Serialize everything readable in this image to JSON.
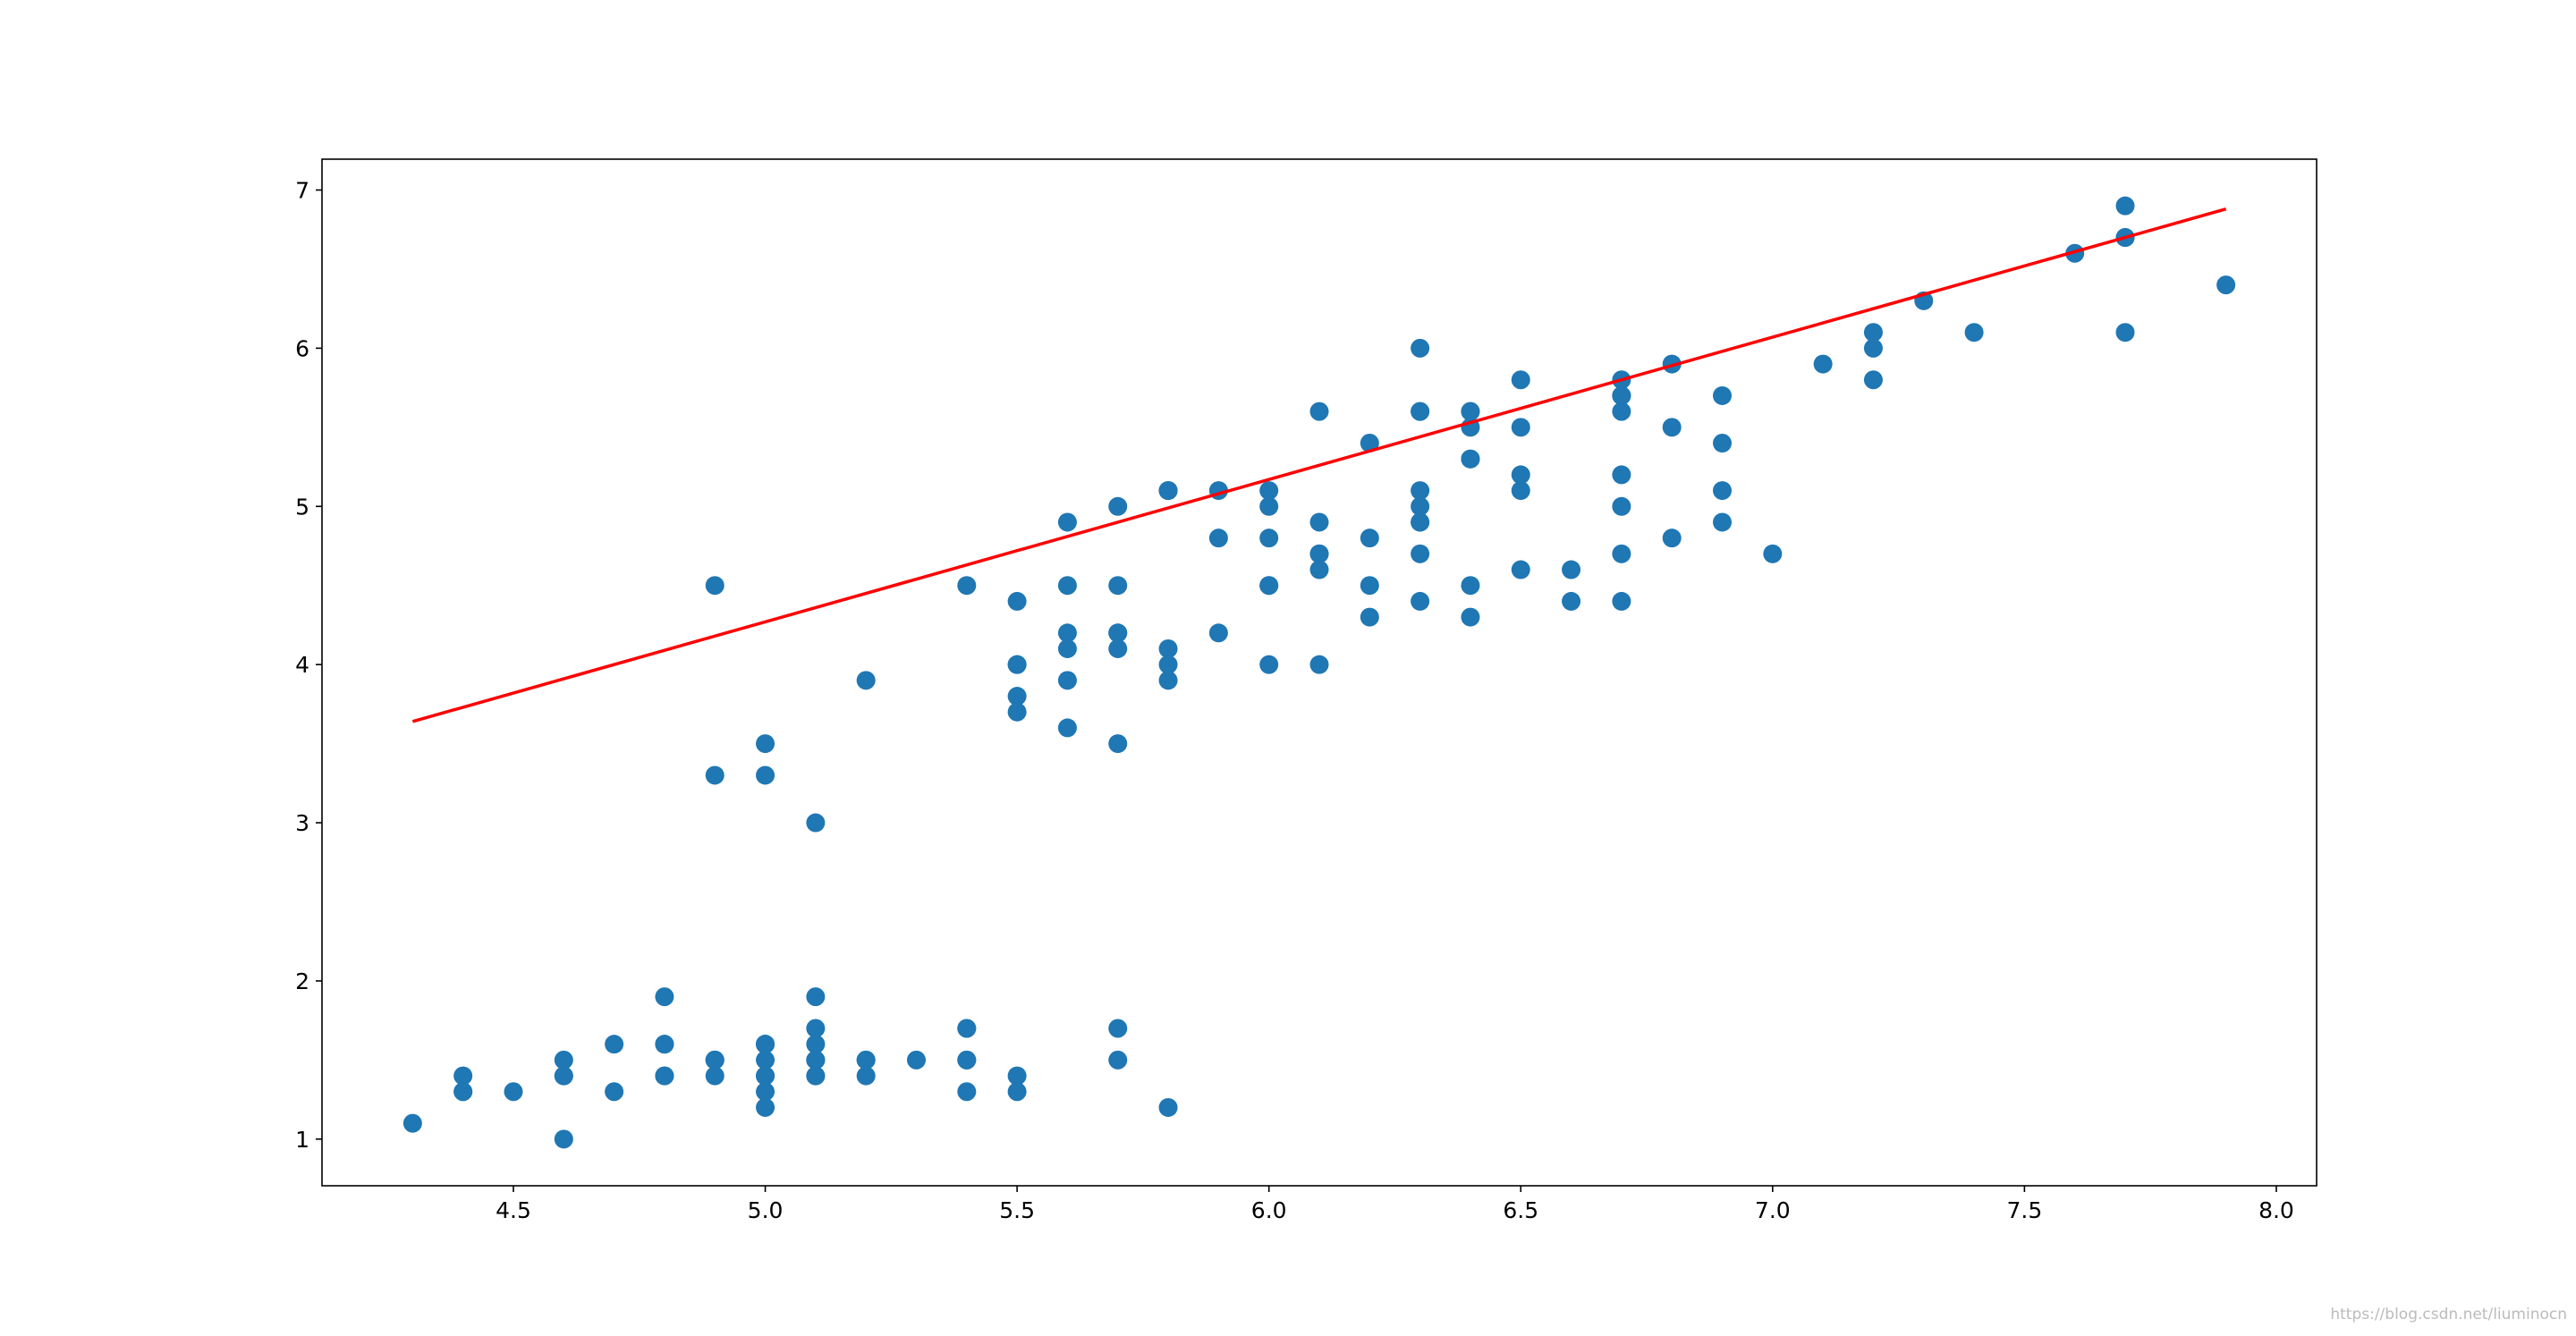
{
  "chart_data": {
    "type": "scatter",
    "xlim": [
      4.12,
      8.08
    ],
    "ylim": [
      0.705,
      7.195
    ],
    "xticks": [
      4.5,
      {
        "value": 5.0,
        "label": "5.0"
      },
      5.5,
      {
        "value": 6.0,
        "label": "6.0"
      },
      6.5,
      {
        "value": 7.0,
        "label": "7.0"
      },
      7.5,
      {
        "value": 8.0,
        "label": "8.0"
      }
    ],
    "yticks": [
      1,
      2,
      3,
      4,
      5,
      6,
      7
    ],
    "grid": false,
    "series": [
      {
        "type": "scatter",
        "color": "#1f77b4",
        "x": [
          5.1,
          4.9,
          4.7,
          4.6,
          5.0,
          5.4,
          4.6,
          5.0,
          4.4,
          4.9,
          5.4,
          4.8,
          4.8,
          4.3,
          5.8,
          5.7,
          5.4,
          5.1,
          5.7,
          5.1,
          5.4,
          5.1,
          4.6,
          5.1,
          4.8,
          5.0,
          5.0,
          5.2,
          5.2,
          4.7,
          4.8,
          5.4,
          5.2,
          5.5,
          4.9,
          5.0,
          5.5,
          4.9,
          4.4,
          5.1,
          5.0,
          4.5,
          4.4,
          5.0,
          5.1,
          4.8,
          5.1,
          4.6,
          5.3,
          5.0,
          7.0,
          6.4,
          6.9,
          5.5,
          6.5,
          5.7,
          6.3,
          4.9,
          6.6,
          5.2,
          5.0,
          5.9,
          6.0,
          6.1,
          5.6,
          6.7,
          5.6,
          5.8,
          6.2,
          5.6,
          5.9,
          6.1,
          6.3,
          6.1,
          6.4,
          6.6,
          6.8,
          6.7,
          6.0,
          5.7,
          5.5,
          5.5,
          5.8,
          6.0,
          5.4,
          6.0,
          6.7,
          6.3,
          5.6,
          5.5,
          5.5,
          6.1,
          5.8,
          5.0,
          5.6,
          5.7,
          5.7,
          6.2,
          5.1,
          5.7,
          6.3,
          5.8,
          7.1,
          6.3,
          6.5,
          7.6,
          4.9,
          7.3,
          6.7,
          7.2,
          6.5,
          6.4,
          6.8,
          5.7,
          5.8,
          6.4,
          6.5,
          7.7,
          7.7,
          6.0,
          6.9,
          5.6,
          7.7,
          6.3,
          6.7,
          7.2,
          6.2,
          6.1,
          6.4,
          7.2,
          7.4,
          7.9,
          6.4,
          6.3,
          6.1,
          7.7,
          6.3,
          6.4,
          6.0,
          6.9,
          6.7,
          6.9,
          5.8,
          6.8,
          6.7,
          6.7,
          6.3,
          6.5,
          6.2,
          5.9
        ],
        "values": [
          1.4,
          1.4,
          1.3,
          1.5,
          1.4,
          1.7,
          1.4,
          1.5,
          1.4,
          1.5,
          1.5,
          1.6,
          1.4,
          1.1,
          1.2,
          1.5,
          1.3,
          1.4,
          1.7,
          1.5,
          1.7,
          1.5,
          1.0,
          1.7,
          1.9,
          1.6,
          1.6,
          1.5,
          1.4,
          1.6,
          1.6,
          1.5,
          1.5,
          1.4,
          1.5,
          1.2,
          1.3,
          1.5,
          1.3,
          1.5,
          1.3,
          1.3,
          1.3,
          1.6,
          1.9,
          1.4,
          1.6,
          1.4,
          1.5,
          1.4,
          4.7,
          4.5,
          4.9,
          4.0,
          4.6,
          4.5,
          4.7,
          3.3,
          4.6,
          3.9,
          3.5,
          4.2,
          4.0,
          4.7,
          3.6,
          4.4,
          4.5,
          4.1,
          4.5,
          3.9,
          4.8,
          4.0,
          4.9,
          4.7,
          4.3,
          4.4,
          4.8,
          5.0,
          4.5,
          3.5,
          3.8,
          3.7,
          3.9,
          5.1,
          4.5,
          4.5,
          4.7,
          4.4,
          4.1,
          4.0,
          4.4,
          4.6,
          4.0,
          3.3,
          4.2,
          4.2,
          4.2,
          4.3,
          3.0,
          4.1,
          6.0,
          5.1,
          5.9,
          5.6,
          5.8,
          6.6,
          4.5,
          6.3,
          5.8,
          6.1,
          5.1,
          5.3,
          5.5,
          5.0,
          5.1,
          5.3,
          5.5,
          6.7,
          6.9,
          5.0,
          5.7,
          4.9,
          6.7,
          4.9,
          5.7,
          6.0,
          4.8,
          4.9,
          5.6,
          5.8,
          6.1,
          6.4,
          5.6,
          5.1,
          5.6,
          6.1,
          5.6,
          5.5,
          4.8,
          5.4,
          5.6,
          5.1,
          5.1,
          5.9,
          5.7,
          5.2,
          5.0,
          5.2,
          5.4,
          5.1
        ]
      },
      {
        "type": "line",
        "color": "#ff0000",
        "x": [
          4.3,
          7.9
        ],
        "values": [
          3.64,
          6.88
        ]
      }
    ],
    "watermark": "https://blog.csdn.net/liuminocn"
  }
}
